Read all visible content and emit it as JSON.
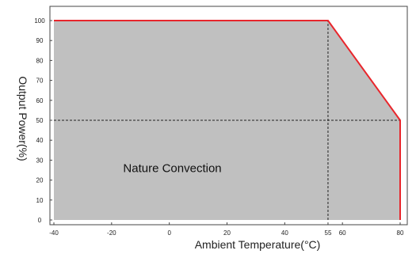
{
  "chart_data": {
    "type": "area",
    "title": "",
    "xlabel": "Ambient Temperature(°C)",
    "ylabel": "Output Power(%)",
    "xlim": [
      -44,
      84
    ],
    "ylim": [
      0,
      105
    ],
    "x_ticks": [
      "-40",
      "-20",
      "0",
      "20",
      "40",
      "55",
      "60",
      "80"
    ],
    "x_tick_values": [
      -40,
      -20,
      0,
      20,
      40,
      55,
      60,
      80
    ],
    "y_ticks": [
      "0",
      "10",
      "20",
      "30",
      "40",
      "50",
      "60",
      "70",
      "80",
      "90",
      "100"
    ],
    "y_tick_values": [
      0,
      10,
      20,
      30,
      40,
      50,
      60,
      70,
      80,
      90,
      100
    ],
    "series": [
      {
        "x": [
          -40,
          55,
          80,
          80
        ],
        "y": [
          100,
          100,
          50,
          0
        ]
      }
    ],
    "reference_lines": [
      {
        "from": [
          55,
          0
        ],
        "to": [
          55,
          100
        ]
      },
      {
        "from": [
          -40,
          50
        ],
        "to": [
          80,
          50
        ]
      }
    ],
    "annotation": {
      "text": "Nature Convection",
      "x": -16,
      "y": 24
    },
    "grid": false,
    "fill_color": "#c0c0c0",
    "line_color": "#e8262c"
  }
}
